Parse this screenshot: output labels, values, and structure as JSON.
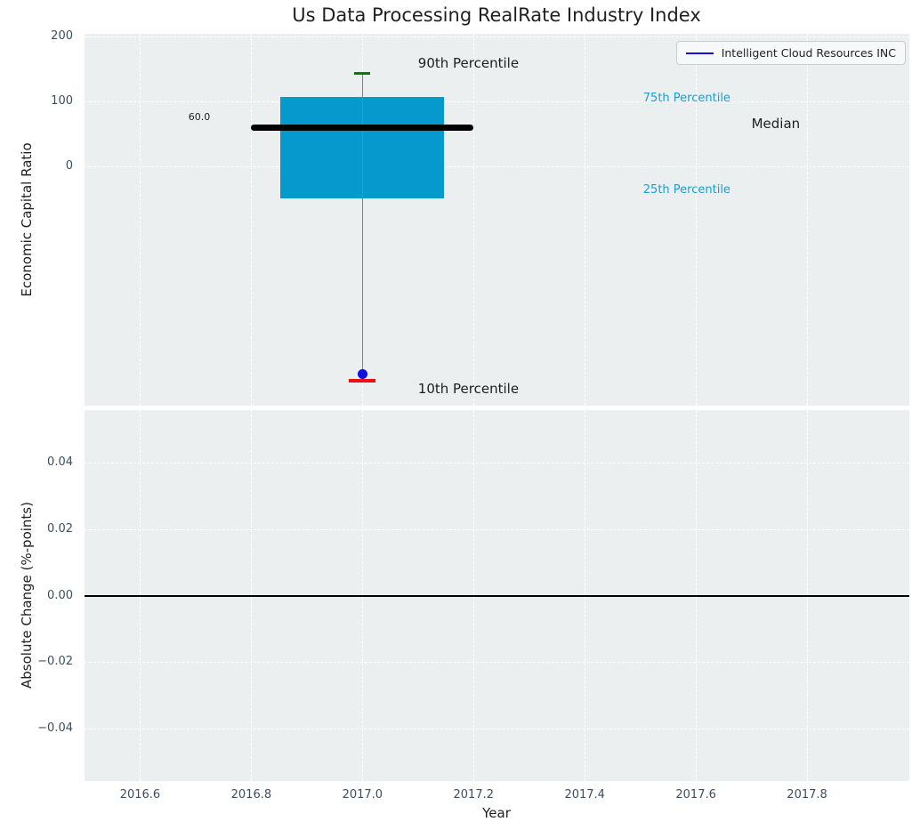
{
  "title": "Us Data Processing RealRate Industry Index",
  "legend": {
    "label": "Intelligent Cloud Resources INC"
  },
  "colors": {
    "plot_bg": "#ebeff0",
    "grid": "#ffffff",
    "tick_label": "#3a4e61",
    "box_fill": "#0699ce",
    "median_line": "#000000",
    "whisker": "#808080",
    "cap_90th": "#008000",
    "cap_10th": "#ee1111",
    "company_marker": "#0f0fe0",
    "legend_line": "#0f0fe0",
    "annotation_cyan": "#1b9ed2",
    "zero_line": "#000000"
  },
  "chart_data": [
    {
      "type": "boxplot",
      "title": "Us Data Processing RealRate Industry Index",
      "ylabel": "Economic Capital Ratio",
      "xlim": [
        2016.5,
        2017.984
      ],
      "ylim": [
        -369,
        204
      ],
      "grid": true,
      "legend_position": "upper right",
      "yticks": [
        {
          "value": 200,
          "label": "200"
        },
        {
          "value": 100,
          "label": "100"
        },
        {
          "value": 0,
          "label": "0"
        }
      ],
      "xticks": [
        2016.6,
        2016.8,
        2017.0,
        2017.2,
        2017.4,
        2017.6,
        2017.8
      ],
      "box": {
        "x": 2017.0,
        "half_width": 0.1475,
        "p90": 143,
        "p75": 107,
        "median": 60.0,
        "p25": -50,
        "p10": -330,
        "median_label": "60.0",
        "median_line_span": [
          2016.8,
          2017.2
        ]
      },
      "company_point": {
        "name": "Intelligent Cloud Resources INC",
        "x": 2017.0,
        "y": -321
      },
      "annotations": [
        {
          "text": "90th Percentile",
          "x": 2017.1,
          "y": 170,
          "size": 15,
          "color": "#1f1f1f"
        },
        {
          "text": "75th Percentile",
          "x": 2017.505,
          "y": 114,
          "size": 13,
          "color": "#1b9ed2"
        },
        {
          "text": "Median",
          "x": 2017.7,
          "y": 77,
          "size": 15,
          "color": "#1f1f1f"
        },
        {
          "text": "25th Percentile",
          "x": 2017.505,
          "y": -28,
          "size": 13,
          "color": "#1b9ed2"
        },
        {
          "text": "10th Percentile",
          "x": 2017.1,
          "y": -332,
          "size": 15,
          "color": "#1f1f1f"
        },
        {
          "text": "60.0",
          "x": 2016.687,
          "y": 83,
          "size": 11,
          "color": "#1f1f1f"
        }
      ]
    },
    {
      "type": "line",
      "ylabel": "Absolute Change (%-points)",
      "xlabel": "Year",
      "xlim": [
        2016.5,
        2017.984
      ],
      "ylim": [
        -0.0557,
        0.0557
      ],
      "grid": true,
      "yticks": [
        {
          "value": 0.04,
          "label": "0.04"
        },
        {
          "value": 0.02,
          "label": "0.02"
        },
        {
          "value": 0.0,
          "label": "0.00"
        },
        {
          "value": -0.02,
          "label": "−0.02"
        },
        {
          "value": -0.04,
          "label": "−0.04"
        }
      ],
      "xticks": [
        2016.6,
        2016.8,
        2017.0,
        2017.2,
        2017.4,
        2017.6,
        2017.8
      ],
      "xtick_labels": [
        "2016.6",
        "2016.8",
        "2017.0",
        "2017.2",
        "2017.4",
        "2017.6",
        "2017.8"
      ],
      "series": [
        {
          "name": "absolute-change-zero-line",
          "type": "hline",
          "y": 0.0,
          "color": "#000000"
        }
      ]
    }
  ]
}
